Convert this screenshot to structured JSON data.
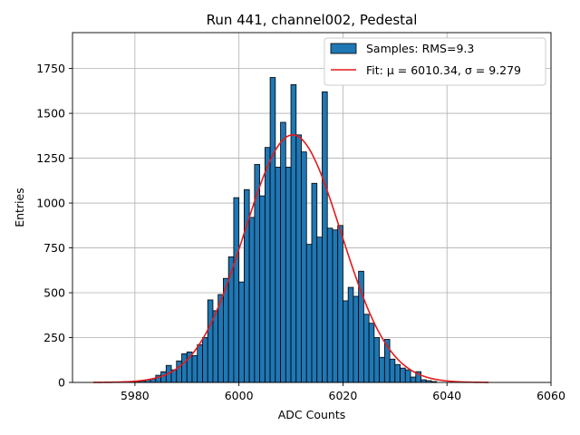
{
  "chart_data": {
    "type": "bar",
    "title": "Run 441, channel002, Pedestal",
    "xlabel": "ADC Counts",
    "ylabel": "Entries",
    "xlim": [
      5968,
      6060
    ],
    "ylim": [
      0,
      1950
    ],
    "xticks": [
      5980,
      6000,
      6020,
      6040,
      6060
    ],
    "yticks": [
      0,
      250,
      500,
      750,
      1000,
      1250,
      1500,
      1750
    ],
    "grid": true,
    "legend_position": "top-right",
    "bin_width": 1,
    "bin_start": 5979,
    "hist_values": [
      3,
      5,
      8,
      15,
      20,
      40,
      60,
      95,
      70,
      120,
      160,
      170,
      150,
      210,
      250,
      460,
      400,
      490,
      580,
      700,
      1030,
      560,
      1075,
      920,
      1215,
      1040,
      1310,
      1700,
      1200,
      1450,
      1200,
      1660,
      1380,
      1285,
      770,
      1110,
      810,
      1620,
      860,
      850,
      875,
      455,
      530,
      480,
      620,
      380,
      330,
      250,
      140,
      240,
      130,
      100,
      80,
      70,
      30,
      60,
      15,
      10,
      5
    ],
    "fit": {
      "mu": 6010.34,
      "sigma": 9.279,
      "amplitude": 1380,
      "x_range": [
        5972,
        6048
      ]
    },
    "series": [
      {
        "name": "Samples: RMS=9.3",
        "kind": "histogram",
        "color": "#1f77b4",
        "edge_color": "#000000"
      },
      {
        "name": "Fit: μ = 6010.34, σ = 9.279",
        "kind": "line",
        "color": "#e41a1c"
      }
    ]
  }
}
